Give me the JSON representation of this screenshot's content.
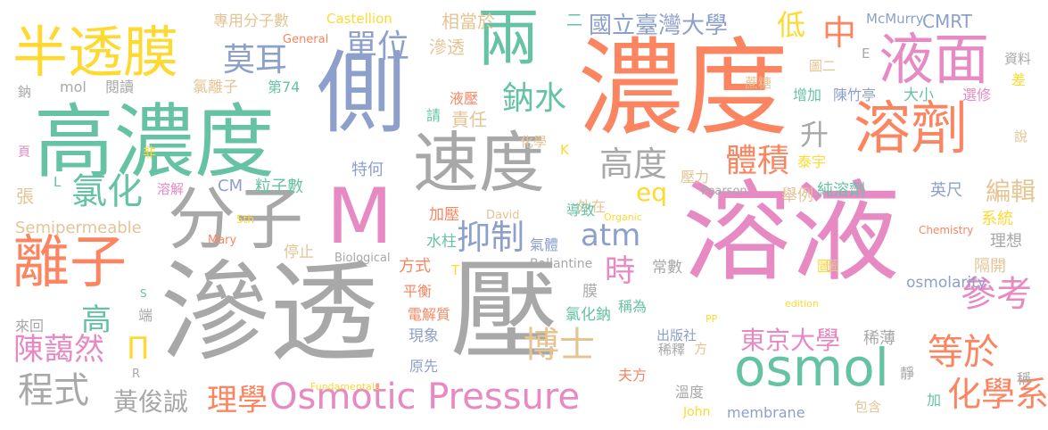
{
  "palette": {
    "gray": "#a8a8a8",
    "orange": "#fb8561",
    "pink": "#e78ac3",
    "green": "#66c2a5",
    "blue": "#8da0cb",
    "lime": "#a6d854",
    "yellow": "#ffd92f",
    "tan": "#e5c494"
  },
  "words": [
    {
      "text": "滲透",
      "color": "gray"
    },
    {
      "text": "壓",
      "color": "gray"
    },
    {
      "text": "溶液",
      "color": "pink"
    },
    {
      "text": "濃度",
      "color": "orange"
    },
    {
      "text": "側",
      "color": "blue"
    },
    {
      "text": "高濃度",
      "color": "green"
    },
    {
      "text": "M",
      "color": "pink"
    },
    {
      "text": "分子",
      "color": "gray"
    },
    {
      "text": "速度",
      "color": "gray"
    },
    {
      "text": "半透膜",
      "color": "yellow"
    },
    {
      "text": "兩",
      "color": "green"
    },
    {
      "text": "液面",
      "color": "pink"
    },
    {
      "text": "溶劑",
      "color": "orange"
    },
    {
      "text": "離子",
      "color": "orange"
    },
    {
      "text": "osmol",
      "color": "green"
    },
    {
      "text": "Osmotic Pressure",
      "color": "pink"
    },
    {
      "text": "氯化",
      "color": "green"
    },
    {
      "text": "莫耳",
      "color": "blue"
    },
    {
      "text": "單位",
      "color": "blue"
    },
    {
      "text": "鈉水",
      "color": "green"
    },
    {
      "text": "抑制",
      "color": "blue"
    },
    {
      "text": "atm",
      "color": "blue"
    },
    {
      "text": "體積",
      "color": "orange"
    },
    {
      "text": "高度",
      "color": "gray"
    },
    {
      "text": "博士",
      "color": "tan"
    },
    {
      "text": "時",
      "color": "pink"
    },
    {
      "text": "參考",
      "color": "pink"
    },
    {
      "text": "等於",
      "color": "orange"
    },
    {
      "text": "化學系",
      "color": "orange"
    },
    {
      "text": "程式",
      "color": "gray"
    },
    {
      "text": "高",
      "color": "green"
    },
    {
      "text": "陳藹然",
      "color": "pink"
    },
    {
      "text": "黃俊誠",
      "color": "gray"
    },
    {
      "text": "理學",
      "color": "orange"
    },
    {
      "text": "東京大學",
      "color": "pink"
    },
    {
      "text": "國立臺灣大學",
      "color": "blue"
    },
    {
      "text": "中",
      "color": "orange"
    },
    {
      "text": "低",
      "color": "yellow"
    },
    {
      "text": "升",
      "color": "gray"
    },
    {
      "text": "eq",
      "color": "yellow"
    },
    {
      "text": "Π",
      "color": "yellow"
    },
    {
      "text": "編輯",
      "color": "tan"
    },
    {
      "text": "英尺",
      "color": "blue"
    },
    {
      "text": "純溶劑",
      "color": "green"
    },
    {
      "text": "舉例",
      "color": "tan"
    },
    {
      "text": "系統",
      "color": "yellow"
    },
    {
      "text": "理想",
      "color": "gray"
    },
    {
      "text": "隔開",
      "color": "tan"
    },
    {
      "text": "osmolarity",
      "color": "blue"
    },
    {
      "text": "CMRT",
      "color": "blue"
    },
    {
      "text": "McMurry",
      "color": "blue"
    },
    {
      "text": "資料",
      "color": "gray"
    },
    {
      "text": "差",
      "color": "yellow"
    },
    {
      "text": "說",
      "color": "tan"
    },
    {
      "text": "稱",
      "color": "gray"
    },
    {
      "text": "圖",
      "color": "yellow"
    },
    {
      "text": "圖二",
      "color": "tan"
    },
    {
      "text": "E",
      "color": "gray"
    },
    {
      "text": "增加",
      "color": "green"
    },
    {
      "text": "陳竹亭",
      "color": "blue"
    },
    {
      "text": "大小",
      "color": "green"
    },
    {
      "text": "選修",
      "color": "pink"
    },
    {
      "text": "泰宇",
      "color": "yellow"
    },
    {
      "text": "壓力",
      "color": "tan"
    },
    {
      "text": "Pearson",
      "color": "gray"
    },
    {
      "text": "蔗糖",
      "color": "tan"
    },
    {
      "text": "二",
      "color": "green"
    },
    {
      "text": "相當於",
      "color": "tan"
    },
    {
      "text": "Castellion",
      "color": "yellow"
    },
    {
      "text": "專用分子數",
      "color": "tan"
    },
    {
      "text": "General",
      "color": "orange"
    },
    {
      "text": "滲透",
      "color": "tan"
    },
    {
      "text": "液壓",
      "color": "orange"
    },
    {
      "text": "責任",
      "color": "tan"
    },
    {
      "text": "請",
      "color": "green"
    },
    {
      "text": "化學",
      "color": "tan"
    },
    {
      "text": "K",
      "color": "yellow"
    },
    {
      "text": "特何",
      "color": "blue"
    },
    {
      "text": "外在",
      "color": "tan"
    },
    {
      "text": "CM",
      "color": "blue"
    },
    {
      "text": "粒子數",
      "color": "green"
    },
    {
      "text": "mol",
      "color": "gray"
    },
    {
      "text": "閱讀",
      "color": "gray"
    },
    {
      "text": "氯離子",
      "color": "tan"
    },
    {
      "text": "第74",
      "color": "green"
    },
    {
      "text": "鈉",
      "color": "gray"
    },
    {
      "text": "頁",
      "color": "pink"
    },
    {
      "text": "非",
      "color": "yellow"
    },
    {
      "text": "溶解",
      "color": "pink"
    },
    {
      "text": "L",
      "color": "green"
    },
    {
      "text": "張",
      "color": "tan"
    },
    {
      "text": "Semipermeable",
      "color": "tan"
    },
    {
      "text": "5th",
      "color": "yellow"
    },
    {
      "text": "Mary",
      "color": "orange"
    },
    {
      "text": "David",
      "color": "tan"
    },
    {
      "text": "加壓",
      "color": "orange"
    },
    {
      "text": "水柱",
      "color": "green"
    },
    {
      "text": "Organic",
      "color": "yellow"
    },
    {
      "text": "導致",
      "color": "green"
    },
    {
      "text": "Chemistry",
      "color": "orange"
    },
    {
      "text": "edition",
      "color": "yellow"
    },
    {
      "text": "圖",
      "color": "tan"
    },
    {
      "text": "停止",
      "color": "tan"
    },
    {
      "text": "Biological",
      "color": "gray"
    },
    {
      "text": "方式",
      "color": "orange"
    },
    {
      "text": "T",
      "color": "yellow"
    },
    {
      "text": "Ballantine",
      "color": "gray"
    },
    {
      "text": "常數",
      "color": "gray"
    },
    {
      "text": "氣體",
      "color": "blue"
    },
    {
      "text": "平衡",
      "color": "orange"
    },
    {
      "text": "膜",
      "color": "gray"
    },
    {
      "text": "稱為",
      "color": "green"
    },
    {
      "text": "電解質",
      "color": "orange"
    },
    {
      "text": "氯化鈉",
      "color": "green"
    },
    {
      "text": "S",
      "color": "green"
    },
    {
      "text": "端",
      "color": "gray"
    },
    {
      "text": "PP",
      "color": "yellow"
    },
    {
      "text": "來回",
      "color": "gray"
    },
    {
      "text": "現象",
      "color": "blue"
    },
    {
      "text": "出版社",
      "color": "blue"
    },
    {
      "text": "稀薄",
      "color": "gray"
    },
    {
      "text": "方",
      "color": "tan"
    },
    {
      "text": "稀釋",
      "color": "gray"
    },
    {
      "text": "R",
      "color": "gray"
    },
    {
      "text": "原先",
      "color": "blue"
    },
    {
      "text": "夫方",
      "color": "orange"
    },
    {
      "text": "靜",
      "color": "gray"
    },
    {
      "text": "溫度",
      "color": "gray"
    },
    {
      "text": "加",
      "color": "green"
    },
    {
      "text": "Fundamentals",
      "color": "yellow"
    },
    {
      "text": "John",
      "color": "yellow"
    },
    {
      "text": "membrane",
      "color": "blue"
    },
    {
      "text": "包含",
      "color": "tan"
    }
  ]
}
